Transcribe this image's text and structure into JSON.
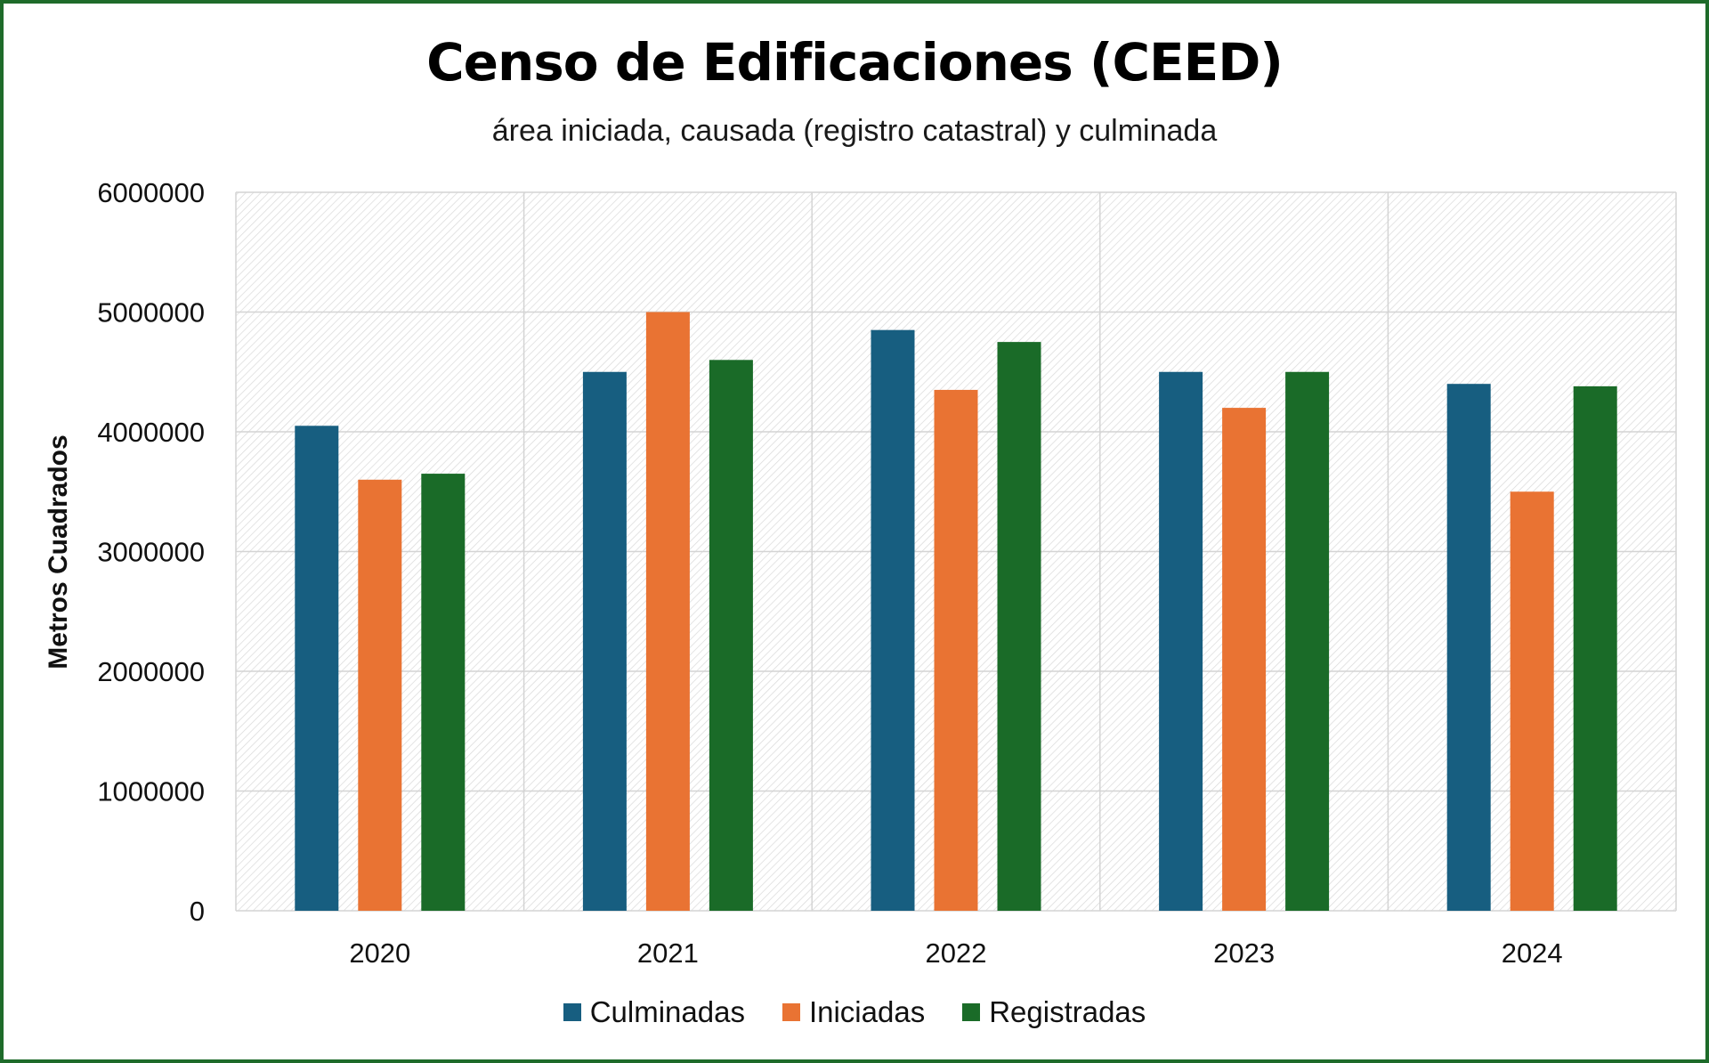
{
  "chart_data": {
    "type": "bar",
    "title": "Censo de Edificaciones (CEED)",
    "subtitle": "área iniciada, causada (registro catastral) y culminada",
    "xlabel": "",
    "ylabel": "Metros Cuadrados",
    "categories": [
      "2020",
      "2021",
      "2022",
      "2023",
      "2024"
    ],
    "series": [
      {
        "name": "Culminadas",
        "color": "#175e80",
        "values": [
          4050000,
          4500000,
          4850000,
          4500000,
          4400000
        ]
      },
      {
        "name": "Iniciadas",
        "color": "#e97333",
        "values": [
          3600000,
          5000000,
          4350000,
          4200000,
          3500000
        ]
      },
      {
        "name": "Registradas",
        "color": "#1a6b28",
        "values": [
          3650000,
          4600000,
          4750000,
          4500000,
          4380000
        ]
      }
    ],
    "yticks": [
      "0",
      "1000000",
      "2000000",
      "3000000",
      "4000000",
      "5000000",
      "6000000"
    ],
    "ylim": [
      0,
      6000000
    ],
    "grid": true,
    "legend_position": "bottom"
  }
}
